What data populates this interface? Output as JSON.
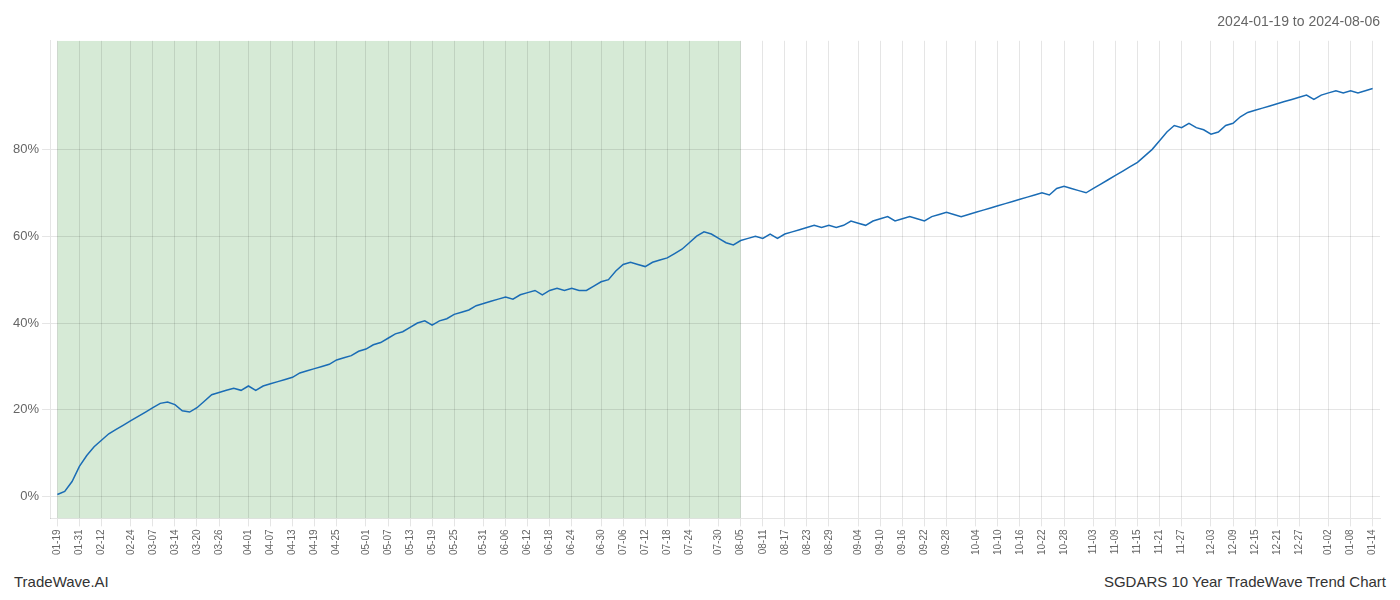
{
  "chart_data": {
    "type": "line",
    "title": "2024-01-19 to 2024-08-06",
    "annotations": [
      "TradeWave.AI",
      "SGDARS 10 Year TradeWave Trend Chart"
    ],
    "color": "#1a6cb5",
    "grid": true,
    "shaded_region": {
      "from": "01-19",
      "to": "08-05",
      "color": "#d6ead6"
    },
    "ylim": [
      -5,
      105
    ],
    "yticks": [
      {
        "value": 0,
        "label": "0%"
      },
      {
        "value": 20,
        "label": "20%"
      },
      {
        "value": 40,
        "label": "40%"
      },
      {
        "value": 60,
        "label": "60%"
      },
      {
        "value": 80,
        "label": "80%"
      }
    ],
    "categories": [
      "01-19",
      null,
      null,
      "01-31",
      null,
      null,
      "02-12",
      null,
      null,
      null,
      "02-24",
      null,
      null,
      "03-07",
      null,
      null,
      "03-14",
      null,
      null,
      "03-20",
      null,
      null,
      "03-26",
      null,
      null,
      null,
      "04-01",
      null,
      null,
      "04-07",
      null,
      null,
      "04-13",
      null,
      null,
      "04-19",
      null,
      null,
      "04-25",
      null,
      null,
      null,
      "05-01",
      null,
      null,
      "05-07",
      null,
      null,
      "05-13",
      null,
      null,
      "05-19",
      null,
      null,
      "05-25",
      null,
      null,
      null,
      "05-31",
      null,
      null,
      "06-06",
      null,
      null,
      "06-12",
      null,
      null,
      "06-18",
      null,
      null,
      "06-24",
      null,
      null,
      null,
      "06-30",
      null,
      null,
      "07-06",
      null,
      null,
      "07-12",
      null,
      null,
      "07-18",
      null,
      null,
      "07-24",
      null,
      null,
      null,
      "07-30",
      null,
      null,
      "08-05",
      null,
      null,
      "08-11",
      null,
      null,
      "08-17",
      null,
      null,
      "08-23",
      null,
      null,
      "08-29",
      null,
      null,
      null,
      "09-04",
      null,
      null,
      "09-10",
      null,
      null,
      "09-16",
      null,
      null,
      "09-22",
      null,
      null,
      "09-28",
      null,
      null,
      null,
      "10-04",
      null,
      null,
      "10-10",
      null,
      null,
      "10-16",
      null,
      null,
      "10-22",
      null,
      null,
      "10-28",
      null,
      null,
      null,
      "11-03",
      null,
      null,
      "11-09",
      null,
      null,
      "11-15",
      null,
      null,
      "11-21",
      null,
      null,
      "11-27",
      null,
      null,
      null,
      "12-03",
      null,
      null,
      "12-09",
      null,
      null,
      "12-15",
      null,
      null,
      "12-21",
      null,
      null,
      "12-27",
      null,
      null,
      null,
      "01-02",
      null,
      null,
      "01-08",
      null,
      null,
      "01-14"
    ],
    "values": [
      0.5,
      1.2,
      3.5,
      7.0,
      9.5,
      11.5,
      13.0,
      14.5,
      15.5,
      16.5,
      17.5,
      18.5,
      19.5,
      20.5,
      21.5,
      21.8,
      21.2,
      19.8,
      19.5,
      20.5,
      22.0,
      23.5,
      24.0,
      24.5,
      25.0,
      24.5,
      25.5,
      24.5,
      25.5,
      26.0,
      26.5,
      27.0,
      27.5,
      28.5,
      29.0,
      29.5,
      30.0,
      30.5,
      31.5,
      32.0,
      32.5,
      33.5,
      34.0,
      35.0,
      35.5,
      36.5,
      37.5,
      38.0,
      39.0,
      40.0,
      40.5,
      39.5,
      40.5,
      41.0,
      42.0,
      42.5,
      43.0,
      44.0,
      44.5,
      45.0,
      45.5,
      46.0,
      45.5,
      46.5,
      47.0,
      47.5,
      46.5,
      47.5,
      48.0,
      47.5,
      48.0,
      47.5,
      47.5,
      48.5,
      49.5,
      50.0,
      52.0,
      53.5,
      54.0,
      53.5,
      53.0,
      54.0,
      54.5,
      55.0,
      56.0,
      57.0,
      58.5,
      60.0,
      61.0,
      60.5,
      59.5,
      58.5,
      58.0,
      59.0,
      59.5,
      60.0,
      59.5,
      60.5,
      59.5,
      60.5,
      61.0,
      61.5,
      62.0,
      62.5,
      62.0,
      62.5,
      62.0,
      62.5,
      63.5,
      63.0,
      62.5,
      63.5,
      64.0,
      64.5,
      63.5,
      64.0,
      64.5,
      64.0,
      63.5,
      64.5,
      65.0,
      65.5,
      65.0,
      64.5,
      65.0,
      65.5,
      66.0,
      66.5,
      67.0,
      67.5,
      68.0,
      68.5,
      69.0,
      69.5,
      70.0,
      69.5,
      71.0,
      71.5,
      71.0,
      70.5,
      70.0,
      71.0,
      72.0,
      73.0,
      74.0,
      75.0,
      76.0,
      77.0,
      78.5,
      80.0,
      82.0,
      84.0,
      85.5,
      85.0,
      86.0,
      85.0,
      84.5,
      83.5,
      84.0,
      85.5,
      86.0,
      87.5,
      88.5,
      89.0,
      89.5,
      90.0,
      90.5,
      91.0,
      91.5,
      92.0,
      92.5,
      91.5,
      92.5,
      93.0,
      93.5,
      93.0,
      93.5,
      93.0,
      93.5,
      94.0
    ]
  }
}
